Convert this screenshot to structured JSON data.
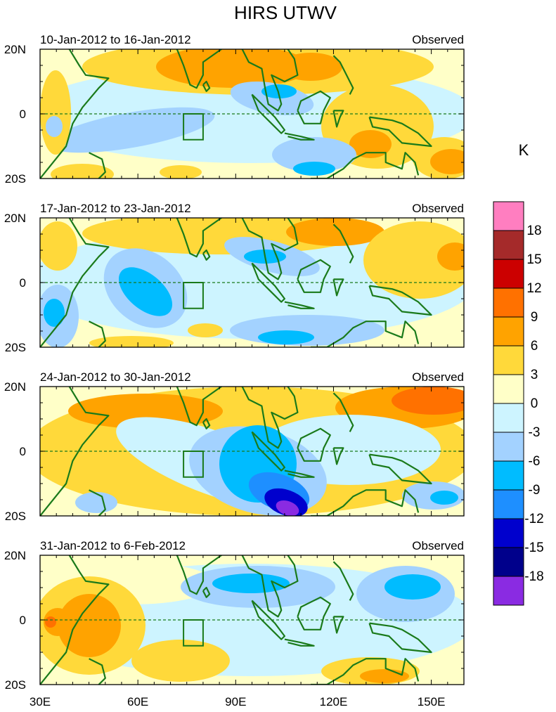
{
  "title": "HIRS UTWV",
  "colorbar": {
    "units": "K",
    "levels": [
      "18",
      "15",
      "12",
      "9",
      "6",
      "3",
      "0",
      "-3",
      "-6",
      "-9",
      "-12",
      "-15",
      "-18"
    ],
    "colors": [
      "#ff7ec0",
      "#a52a2a",
      "#cc0000",
      "#ff7100",
      "#ffa300",
      "#ffd93a",
      "#ffffc8",
      "#cdf4ff",
      "#a3d2ff",
      "#00bcff",
      "#1e8fff",
      "#0000cd",
      "#00008b",
      "#8a2be2"
    ]
  },
  "panels": [
    {
      "date_range": "10-Jan-2012 to 16-Jan-2012",
      "label": "Observed"
    },
    {
      "date_range": "17-Jan-2012 to 23-Jan-2012",
      "label": "Observed"
    },
    {
      "date_range": "24-Jan-2012 to 30-Jan-2012",
      "label": "Observed"
    },
    {
      "date_range": "31-Jan-2012 to 6-Feb-2012",
      "label": "Observed"
    }
  ],
  "lat_labels": [
    "20N",
    "0",
    "20S"
  ],
  "lon_labels": [
    "30E",
    "60E",
    "90E",
    "120E",
    "150E"
  ],
  "map_extent": {
    "lon_min": 30,
    "lon_max": 160,
    "lat_min": -20,
    "lat_max": 20
  },
  "land_color": "#1a7a1a"
}
